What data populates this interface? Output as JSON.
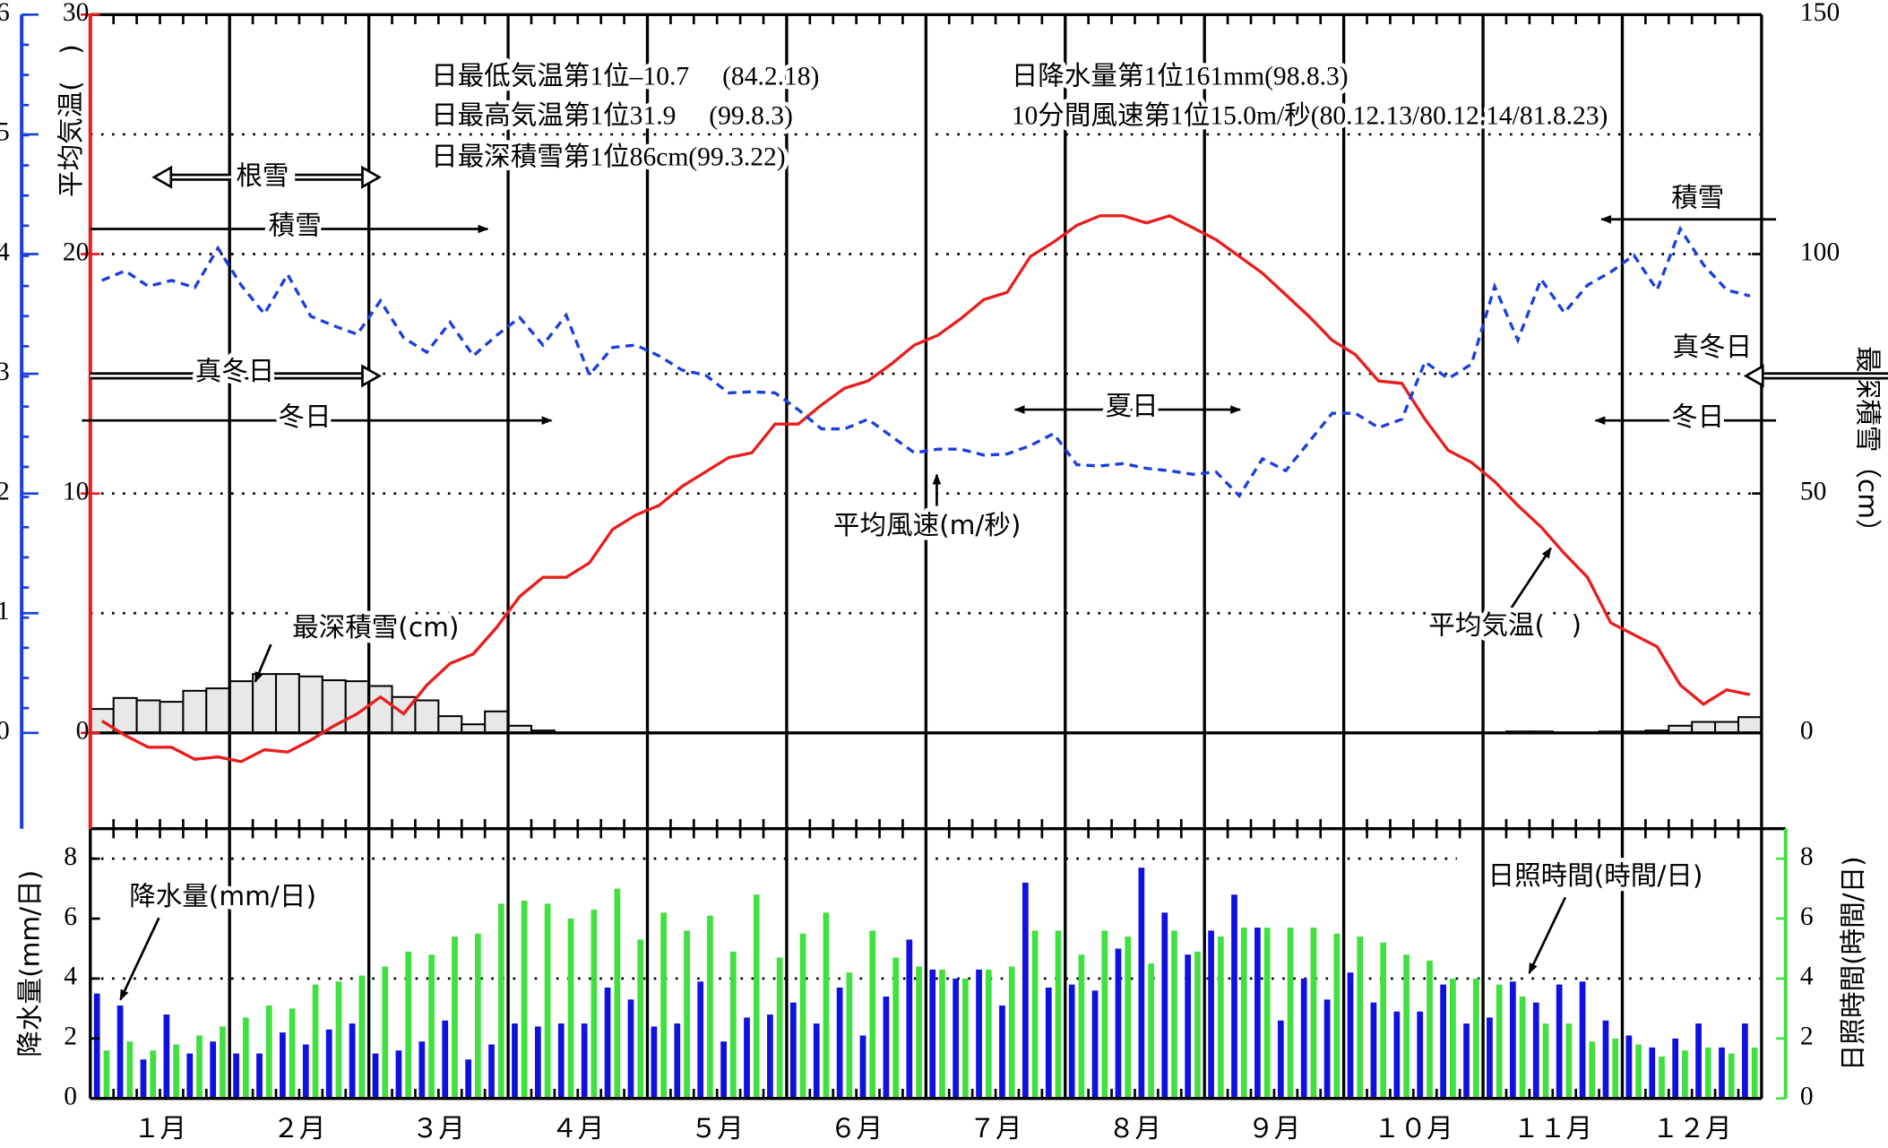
{
  "chart_data": [
    {
      "type": "line",
      "ylabel": "平均気温(　)",
      "ylim": [
        -4,
        30
      ],
      "yticks": [
        0,
        10,
        20,
        30
      ],
      "y2label": "最深積雪（cm）",
      "y2lim": [
        -20,
        150
      ],
      "y2ticks": [
        0,
        50,
        100,
        150
      ],
      "y3lim": [
        -0.8,
        6
      ],
      "y3ticks": [
        0,
        1,
        2,
        3,
        4,
        5,
        6
      ],
      "grid": true,
      "annotations": [
        "日最低気温第1位–10.7　 (84.2.18)",
        "日最高気温第1位31.9　 (99.8.3)",
        "日最深積雪第1位86cm(99.3.22)",
        "日降水量第1位161mm(98.8.3)",
        "10分間風速第1位15.0m/秒(80.12.13/80.12.14/81.8.23)",
        "根雪",
        "積雪",
        "積雪",
        "真冬日",
        "真冬日",
        "冬日",
        "冬日",
        "夏日"
      ],
      "series": [
        {
          "name": "平均気温(　)",
          "type": "line",
          "color": "#e81e1e",
          "values": [
            0.5,
            -0.1,
            -0.6,
            -0.6,
            -1.1,
            -1.0,
            -1.2,
            -0.7,
            -0.8,
            -0.3,
            0.3,
            0.8,
            1.5,
            0.8,
            2.0,
            2.9,
            3.3,
            4.4,
            5.7,
            6.5,
            6.5,
            7.1,
            8.5,
            9.1,
            9.5,
            10.3,
            10.9,
            11.5,
            11.7,
            12.9,
            12.9,
            13.7,
            14.4,
            14.7,
            15.4,
            16.2,
            16.6,
            17.3,
            18.1,
            18.4,
            19.9,
            20.5,
            21.2,
            21.6,
            21.6,
            21.3,
            21.6,
            21.1,
            20.6,
            19.9,
            19.2,
            18.3,
            17.4,
            16.4,
            15.8,
            14.7,
            14.6,
            13.1,
            11.8,
            11.3,
            10.5,
            9.5,
            8.6,
            7.5,
            6.5,
            4.6,
            4.1,
            3.6,
            2.0,
            1.2,
            1.8,
            1.6
          ]
        },
        {
          "name": "平均風速(m/秒)",
          "type": "line",
          "axis": "y3",
          "color": "#1a3fe0",
          "values": [
            3.78,
            3.86,
            3.73,
            3.78,
            3.72,
            4.05,
            3.74,
            3.5,
            3.83,
            3.48,
            3.4,
            3.33,
            3.61,
            3.3,
            3.18,
            3.43,
            3.15,
            3.32,
            3.47,
            3.24,
            3.49,
            2.99,
            3.22,
            3.24,
            3.15,
            3.03,
            2.99,
            2.84,
            2.85,
            2.84,
            2.7,
            2.54,
            2.54,
            2.62,
            2.48,
            2.34,
            2.37,
            2.37,
            2.32,
            2.33,
            2.4,
            2.5,
            2.24,
            2.23,
            2.25,
            2.21,
            2.19,
            2.16,
            2.18,
            1.98,
            2.29,
            2.19,
            2.43,
            2.67,
            2.67,
            2.55,
            2.62,
            3.1,
            2.96,
            3.08,
            3.73,
            3.28,
            3.79,
            3.51,
            3.74,
            3.85,
            3.99,
            3.7,
            4.21,
            3.91,
            3.7,
            3.65
          ]
        },
        {
          "name": "最深積雪(cm)",
          "type": "bar",
          "axis": "y2",
          "color": "#e8e8e8",
          "values": [
            5.0,
            7.3,
            6.8,
            6.5,
            8.8,
            9.3,
            10.8,
            12.3,
            12.3,
            11.8,
            11.0,
            10.8,
            9.8,
            7.5,
            6.8,
            3.5,
            1.8,
            4.5,
            1.5,
            0.5,
            0,
            0,
            0,
            0,
            0,
            0,
            0,
            0,
            0,
            0,
            0,
            0,
            0,
            0,
            0,
            0,
            0,
            0,
            0,
            0,
            0,
            0,
            0,
            0,
            0,
            0,
            0,
            0,
            0,
            0,
            0,
            0,
            0,
            0,
            0,
            0,
            0,
            0,
            0,
            0,
            0,
            0.3,
            0.3,
            0,
            0,
            0.3,
            0.3,
            0.5,
            1.5,
            2.3,
            2.3,
            3.3
          ]
        }
      ]
    },
    {
      "type": "bar",
      "months": [
        "１月",
        "２月",
        "３月",
        "４月",
        "５月",
        "６月",
        "７月",
        "８月",
        "９月",
        "１０月",
        "１１月",
        "１２月"
      ],
      "ylabel": "降水量(mm/日)",
      "ylim": [
        0,
        9
      ],
      "yticks": [
        0,
        2,
        4,
        6,
        8
      ],
      "y2label": "日照時間(時間/日)",
      "y2lim": [
        0,
        9
      ],
      "y2ticks": [
        0,
        2,
        4,
        6,
        8
      ],
      "grid": true,
      "series": [
        {
          "name": "降水量(mm/日)",
          "color": "#1010e0",
          "values": [
            3.5,
            3.1,
            1.3,
            2.8,
            1.5,
            1.9,
            1.5,
            1.5,
            2.2,
            1.8,
            2.3,
            2.5,
            1.5,
            1.6,
            1.9,
            2.6,
            1.3,
            1.8,
            2.5,
            2.4,
            2.5,
            2.5,
            3.7,
            3.3,
            2.4,
            2.5,
            3.9,
            1.9,
            2.7,
            2.8,
            3.2,
            2.5,
            3.7,
            2.1,
            3.4,
            5.3,
            4.3,
            4.0,
            4.3,
            3.1,
            7.2,
            3.7,
            3.8,
            3.6,
            5.0,
            7.7,
            6.2,
            4.8,
            5.6,
            6.8,
            5.7,
            2.6,
            4.0,
            3.3,
            4.2,
            3.2,
            2.9,
            2.9,
            3.8,
            2.5,
            2.7,
            3.9,
            3.2,
            3.8,
            3.9,
            2.6,
            2.1,
            1.7,
            2.0,
            2.5,
            1.7,
            2.5
          ]
        },
        {
          "name": "日照時間(時間/日)",
          "axis": "y2",
          "color": "#40e040",
          "values": [
            1.6,
            1.9,
            1.6,
            1.8,
            2.1,
            2.4,
            2.7,
            3.1,
            3.0,
            3.8,
            3.9,
            4.1,
            4.4,
            4.9,
            4.8,
            5.4,
            5.5,
            6.5,
            6.6,
            6.5,
            6.0,
            6.3,
            7.0,
            5.3,
            6.2,
            5.6,
            6.1,
            4.9,
            6.8,
            4.7,
            5.5,
            6.2,
            4.2,
            5.6,
            4.7,
            4.4,
            4.3,
            4.0,
            4.3,
            4.4,
            5.6,
            5.6,
            4.8,
            5.6,
            5.4,
            4.5,
            5.6,
            4.9,
            5.4,
            5.7,
            5.7,
            5.7,
            5.7,
            5.5,
            5.4,
            5.2,
            4.8,
            4.6,
            4.0,
            4.0,
            3.8,
            3.4,
            2.5,
            2.5,
            1.9,
            2.0,
            1.8,
            1.4,
            1.6,
            1.7,
            1.5,
            1.7
          ]
        }
      ]
    }
  ]
}
